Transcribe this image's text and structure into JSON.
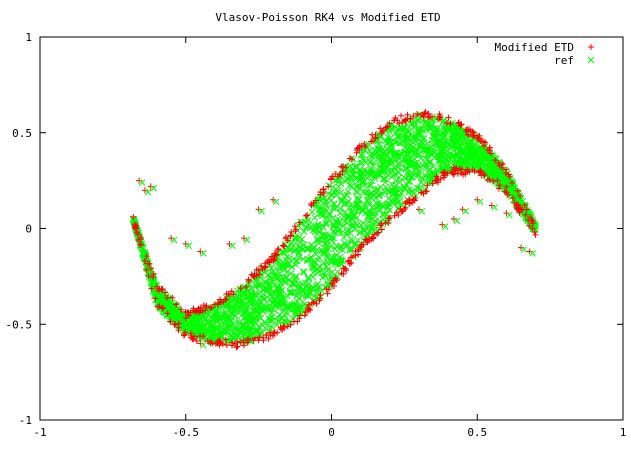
{
  "chart_data": {
    "type": "scatter",
    "title": "Vlasov-Poisson RK4 vs Modified ETD",
    "xlabel": "",
    "ylabel": "",
    "xlim": [
      -1,
      1
    ],
    "ylim": [
      -1,
      1
    ],
    "grid": false,
    "legend_position": "top-right",
    "x_ticks": [
      "-1",
      "-0.5",
      "0",
      "0.5",
      "1"
    ],
    "y_ticks": [
      "1",
      "0.5",
      "0",
      "-0.5",
      "-1"
    ],
    "x_tick_values": [
      -1,
      -0.5,
      0,
      0.5,
      1
    ],
    "y_tick_values": [
      1,
      0.5,
      0,
      -0.5,
      -1
    ],
    "series": [
      {
        "name": "Modified ETD",
        "marker": "+",
        "color": "#ff0000",
        "curve": {
          "description_points_x": [
            -0.68,
            -0.6,
            -0.5,
            -0.4,
            -0.3,
            -0.2,
            -0.1,
            0.0,
            0.1,
            0.2,
            0.3,
            0.4,
            0.5,
            0.6,
            0.7
          ],
          "upper_y": [
            0.05,
            -0.3,
            -0.45,
            -0.4,
            -0.3,
            -0.15,
            0.05,
            0.25,
            0.42,
            0.55,
            0.6,
            0.57,
            0.48,
            0.3,
            0.02
          ],
          "lower_y": [
            0.05,
            -0.4,
            -0.55,
            -0.6,
            -0.6,
            -0.55,
            -0.45,
            -0.3,
            -0.1,
            0.05,
            0.18,
            0.3,
            0.3,
            0.2,
            -0.02
          ]
        }
      },
      {
        "name": "ref",
        "marker": "x",
        "color": "#00ff00"
      }
    ],
    "stray_points": [
      {
        "x": -0.66,
        "y": 0.25
      },
      {
        "x": -0.64,
        "y": 0.2
      },
      {
        "x": -0.62,
        "y": 0.22
      },
      {
        "x": -0.55,
        "y": -0.05
      },
      {
        "x": -0.5,
        "y": -0.08
      },
      {
        "x": -0.45,
        "y": -0.12
      },
      {
        "x": -0.35,
        "y": -0.08
      },
      {
        "x": -0.3,
        "y": -0.05
      },
      {
        "x": -0.25,
        "y": 0.1
      },
      {
        "x": -0.2,
        "y": 0.15
      },
      {
        "x": -0.45,
        "y": -0.6
      },
      {
        "x": 0.45,
        "y": 0.1
      },
      {
        "x": 0.5,
        "y": 0.15
      },
      {
        "x": 0.55,
        "y": 0.12
      },
      {
        "x": 0.6,
        "y": 0.08
      },
      {
        "x": 0.65,
        "y": -0.1
      },
      {
        "x": 0.68,
        "y": -0.12
      },
      {
        "x": 0.42,
        "y": 0.05
      },
      {
        "x": 0.38,
        "y": 0.02
      },
      {
        "x": 0.3,
        "y": 0.1
      }
    ]
  }
}
